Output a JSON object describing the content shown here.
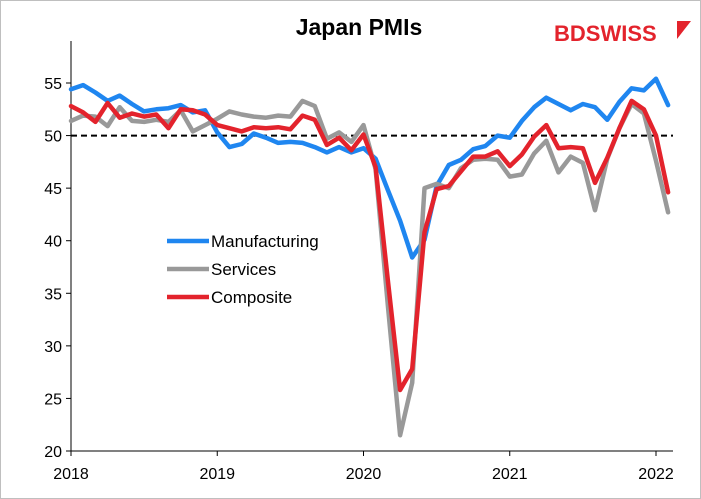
{
  "logo": {
    "text_bd": "BD",
    "text_swiss": "SWISS",
    "color": "#e3232c"
  },
  "chart_data": {
    "type": "line",
    "title": "Japan PMIs",
    "xlabel": "",
    "ylabel": "",
    "ylim": [
      20,
      57
    ],
    "yticks": [
      20,
      25,
      30,
      35,
      40,
      45,
      50,
      55
    ],
    "xlim": [
      2018.0,
      2022.25
    ],
    "xticks": [
      2018,
      2019,
      2020,
      2021,
      2022
    ],
    "xtick_labels": [
      "2018",
      "2019",
      "2020",
      "2021",
      "2022"
    ],
    "reference_line": {
      "y": 50,
      "style": "dashed",
      "color": "#000000"
    },
    "grid": false,
    "legend_position": "center-left",
    "x": [
      2018.0,
      2018.083,
      2018.167,
      2018.25,
      2018.333,
      2018.417,
      2018.5,
      2018.583,
      2018.667,
      2018.75,
      2018.833,
      2018.917,
      2019.0,
      2019.083,
      2019.167,
      2019.25,
      2019.333,
      2019.417,
      2019.5,
      2019.583,
      2019.667,
      2019.75,
      2019.833,
      2019.917,
      2020.0,
      2020.083,
      2020.167,
      2020.25,
      2020.333,
      2020.417,
      2020.5,
      2020.583,
      2020.667,
      2020.75,
      2020.833,
      2020.917,
      2021.0,
      2021.083,
      2021.167,
      2021.25,
      2021.333,
      2021.417,
      2021.5,
      2021.583,
      2021.667,
      2021.75,
      2021.833,
      2021.917,
      2022.0,
      2022.083,
      2022.167
    ],
    "series": [
      {
        "name": "Manufacturing",
        "color": "#1f86f0",
        "values": [
          54.4,
          54.8,
          54.1,
          53.3,
          53.8,
          53.0,
          52.3,
          52.5,
          52.6,
          52.9,
          52.2,
          52.4,
          50.3,
          48.9,
          49.2,
          50.2,
          49.8,
          49.3,
          49.4,
          49.3,
          48.9,
          48.4,
          48.9,
          48.4,
          48.8,
          47.8,
          44.8,
          41.9,
          38.4,
          40.1,
          45.2,
          47.2,
          47.7,
          48.7,
          49.0,
          50.0,
          49.8,
          51.4,
          52.7,
          53.6,
          53.0,
          52.4,
          53.0,
          52.7,
          51.5,
          53.2,
          54.5,
          54.3,
          55.4,
          52.9,
          null
        ]
      },
      {
        "name": "Services",
        "color": "#999999",
        "values": [
          51.4,
          51.9,
          51.8,
          50.9,
          52.7,
          51.4,
          51.3,
          51.5,
          51.3,
          52.4,
          50.4,
          51.0,
          51.6,
          52.3,
          52.0,
          51.8,
          51.7,
          51.9,
          51.8,
          53.3,
          52.8,
          49.7,
          50.3,
          49.4,
          51.0,
          46.8,
          33.8,
          21.5,
          26.5,
          45.0,
          45.4,
          45.0,
          46.9,
          47.7,
          47.8,
          47.7,
          46.1,
          46.3,
          48.3,
          49.5,
          46.5,
          48.0,
          47.4,
          42.9,
          47.8,
          50.7,
          53.0,
          52.1,
          47.6,
          42.7,
          null
        ]
      },
      {
        "name": "Composite",
        "color": "#e3232c",
        "values": [
          52.8,
          52.2,
          51.3,
          53.1,
          51.7,
          52.1,
          51.8,
          52.0,
          50.7,
          52.5,
          52.4,
          52.0,
          51.0,
          50.7,
          50.4,
          50.8,
          50.7,
          50.8,
          50.6,
          51.9,
          51.5,
          49.1,
          49.8,
          48.6,
          50.1,
          47.0,
          36.2,
          25.8,
          27.8,
          40.8,
          44.9,
          45.2,
          46.6,
          48.0,
          48.0,
          48.5,
          47.1,
          48.2,
          49.9,
          51.0,
          48.8,
          48.9,
          48.8,
          45.5,
          47.9,
          50.7,
          53.3,
          52.5,
          50.0,
          44.6,
          null
        ]
      }
    ]
  }
}
